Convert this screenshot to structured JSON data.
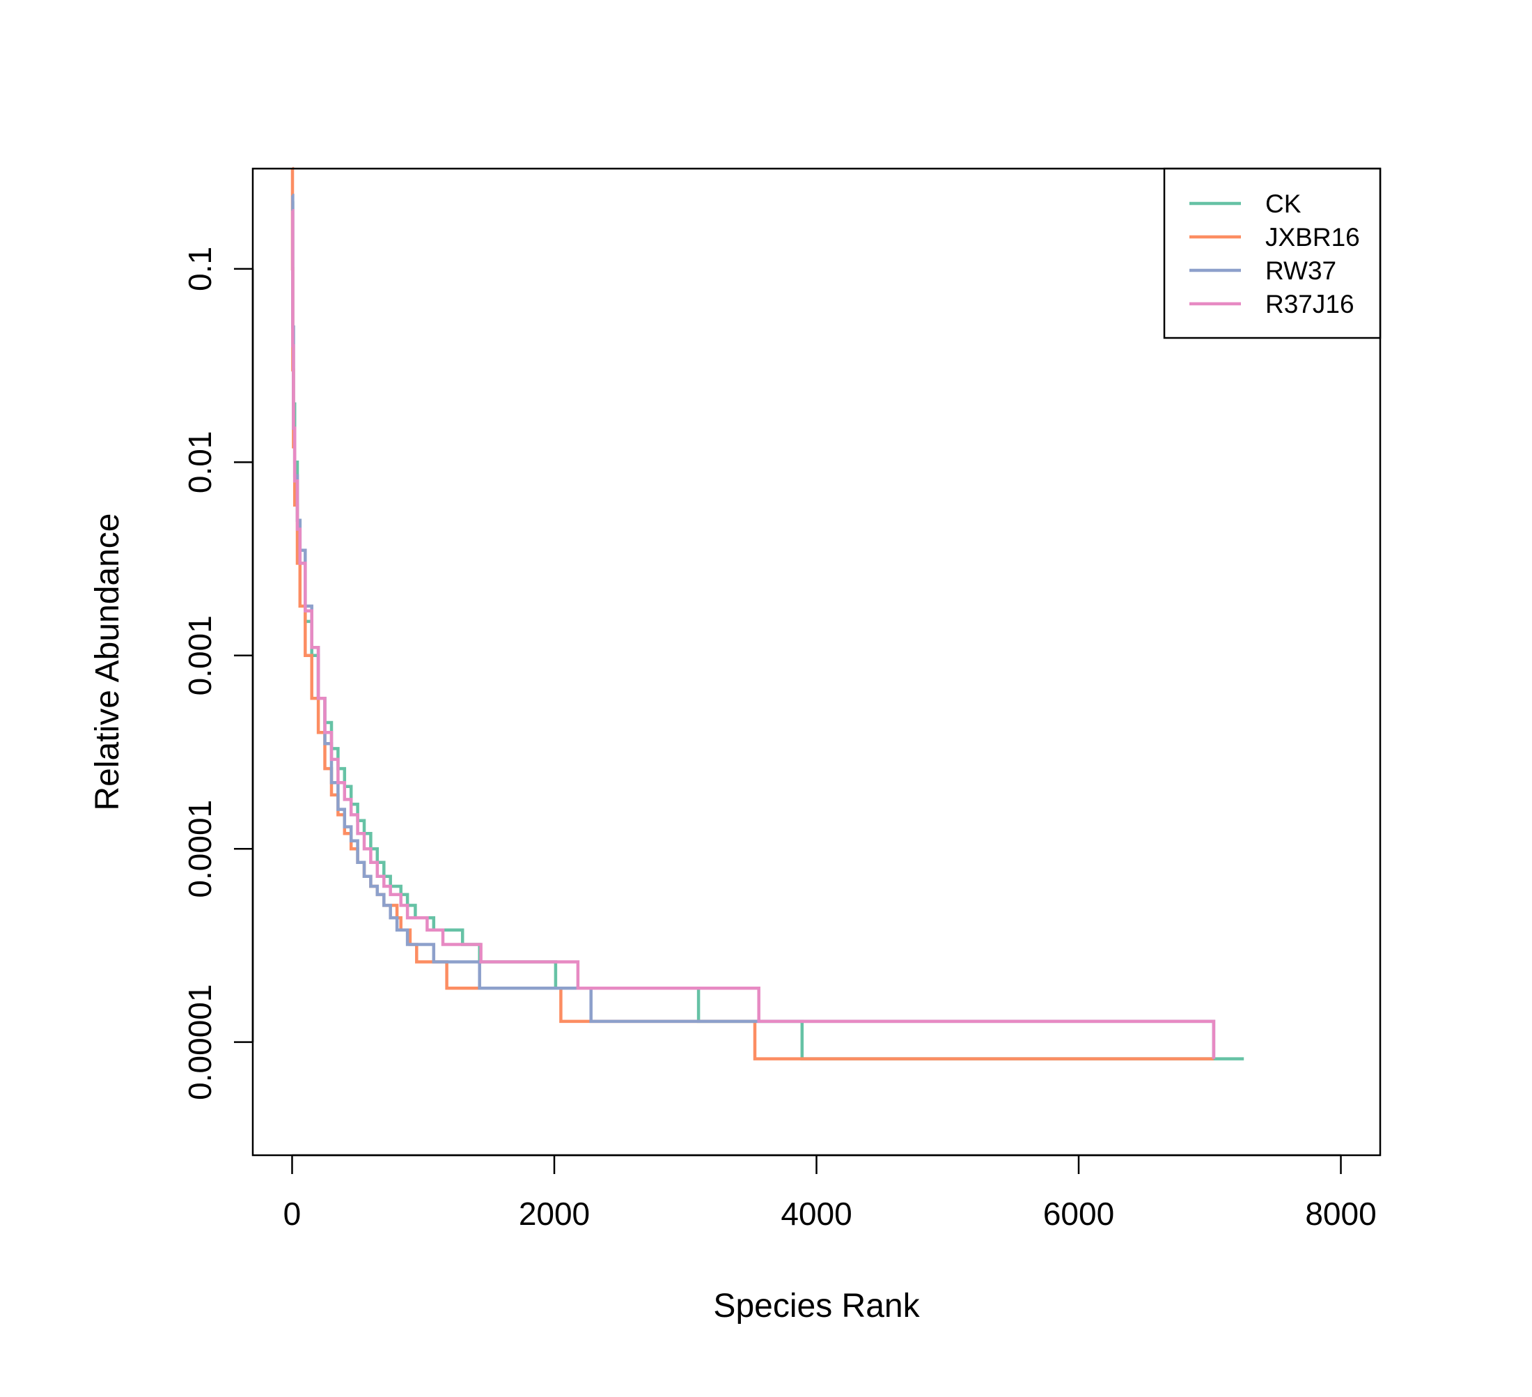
{
  "chart_data": {
    "type": "line",
    "title": "",
    "xlabel": "Species Rank",
    "ylabel": "Relative Abundance",
    "xlim": [
      -300,
      8300
    ],
    "ylim": [
      2.6e-06,
      0.33
    ],
    "y_scale": "log",
    "grid": false,
    "legend_position": "top-right",
    "x_ticks": [
      0,
      2000,
      4000,
      6000,
      8000
    ],
    "x_tick_labels": [
      "0",
      "2000",
      "4000",
      "6000",
      "8000"
    ],
    "y_ticks": [
      0.1,
      0.01,
      0.001,
      0.0001,
      1e-05
    ],
    "y_tick_labels": [
      "0.1",
      "0.01",
      "0.001",
      "0.0001",
      "0.00001"
    ],
    "series": [
      {
        "name": "CK",
        "color": "#66C2A5",
        "points": [
          [
            1,
            0.22
          ],
          [
            5,
            0.05
          ],
          [
            10,
            0.02
          ],
          [
            20,
            0.01
          ],
          [
            40,
            0.005
          ],
          [
            60,
            0.003
          ],
          [
            100,
            0.0015
          ],
          [
            150,
            0.001
          ],
          [
            200,
            0.0006
          ],
          [
            250,
            0.00045
          ],
          [
            300,
            0.00033
          ],
          [
            350,
            0.00026
          ],
          [
            400,
            0.00021
          ],
          [
            450,
            0.00017
          ],
          [
            500,
            0.00014
          ],
          [
            550,
            0.00012
          ],
          [
            600,
            0.0001
          ],
          [
            650,
            8.5e-05
          ],
          [
            700,
            7.2e-05
          ],
          [
            750,
            6.4e-05
          ],
          [
            830,
            5.8e-05
          ],
          [
            880,
            5.1e-05
          ],
          [
            940,
            4.4e-05
          ],
          [
            1080,
            3.8e-05
          ],
          [
            1300,
            3.2e-05
          ],
          [
            1430,
            2.6e-05
          ],
          [
            2010,
            1.9e-05
          ],
          [
            3100,
            1.28e-05
          ],
          [
            3890,
            8.2e-06
          ],
          [
            7260,
            8.2e-06
          ]
        ]
      },
      {
        "name": "JXBR16",
        "color": "#FC8D62",
        "points": [
          [
            1,
            0.33
          ],
          [
            3,
            0.1
          ],
          [
            5,
            0.03
          ],
          [
            10,
            0.012
          ],
          [
            20,
            0.006
          ],
          [
            40,
            0.003
          ],
          [
            60,
            0.0018
          ],
          [
            100,
            0.001
          ],
          [
            150,
            0.0006
          ],
          [
            200,
            0.0004
          ],
          [
            250,
            0.00026
          ],
          [
            300,
            0.00019
          ],
          [
            350,
            0.00015
          ],
          [
            400,
            0.00012
          ],
          [
            450,
            0.0001
          ],
          [
            500,
            8.5e-05
          ],
          [
            550,
            7.2e-05
          ],
          [
            600,
            6.4e-05
          ],
          [
            650,
            5.8e-05
          ],
          [
            700,
            5.1e-05
          ],
          [
            800,
            4.4e-05
          ],
          [
            830,
            3.8e-05
          ],
          [
            900,
            3.2e-05
          ],
          [
            950,
            2.6e-05
          ],
          [
            1180,
            1.9e-05
          ],
          [
            2050,
            1.28e-05
          ],
          [
            3530,
            8.2e-06
          ],
          [
            7030,
            8.2e-06
          ]
        ]
      },
      {
        "name": "RW37",
        "color": "#8DA0CB",
        "points": [
          [
            1,
            0.24
          ],
          [
            5,
            0.05
          ],
          [
            10,
            0.015
          ],
          [
            20,
            0.0085
          ],
          [
            40,
            0.005
          ],
          [
            60,
            0.0035
          ],
          [
            100,
            0.0018
          ],
          [
            150,
            0.0011
          ],
          [
            200,
            0.0006
          ],
          [
            250,
            0.00035
          ],
          [
            300,
            0.00022
          ],
          [
            350,
            0.00016
          ],
          [
            400,
            0.00013
          ],
          [
            450,
            0.00011
          ],
          [
            500,
            8.5e-05
          ],
          [
            550,
            7.2e-05
          ],
          [
            600,
            6.4e-05
          ],
          [
            650,
            5.8e-05
          ],
          [
            700,
            5.1e-05
          ],
          [
            750,
            4.4e-05
          ],
          [
            800,
            3.8e-05
          ],
          [
            880,
            3.2e-05
          ],
          [
            1080,
            2.6e-05
          ],
          [
            1430,
            1.9e-05
          ],
          [
            2280,
            1.28e-05
          ],
          [
            7030,
            8.2e-06
          ]
        ]
      },
      {
        "name": "R37J16",
        "color": "#E78AC3",
        "points": [
          [
            1,
            0.2
          ],
          [
            5,
            0.04
          ],
          [
            10,
            0.015
          ],
          [
            20,
            0.008
          ],
          [
            40,
            0.0045
          ],
          [
            60,
            0.003
          ],
          [
            100,
            0.0017
          ],
          [
            150,
            0.0011
          ],
          [
            200,
            0.0006
          ],
          [
            250,
            0.0004
          ],
          [
            300,
            0.00029
          ],
          [
            350,
            0.00022
          ],
          [
            400,
            0.00018
          ],
          [
            450,
            0.00015
          ],
          [
            500,
            0.00012
          ],
          [
            550,
            0.0001
          ],
          [
            600,
            8.5e-05
          ],
          [
            650,
            7.2e-05
          ],
          [
            700,
            6.4e-05
          ],
          [
            750,
            5.8e-05
          ],
          [
            830,
            5.1e-05
          ],
          [
            880,
            4.4e-05
          ],
          [
            1030,
            3.8e-05
          ],
          [
            1150,
            3.2e-05
          ],
          [
            1440,
            2.6e-05
          ],
          [
            2180,
            1.9e-05
          ],
          [
            3560,
            1.28e-05
          ],
          [
            7030,
            8.2e-06
          ]
        ]
      }
    ]
  }
}
